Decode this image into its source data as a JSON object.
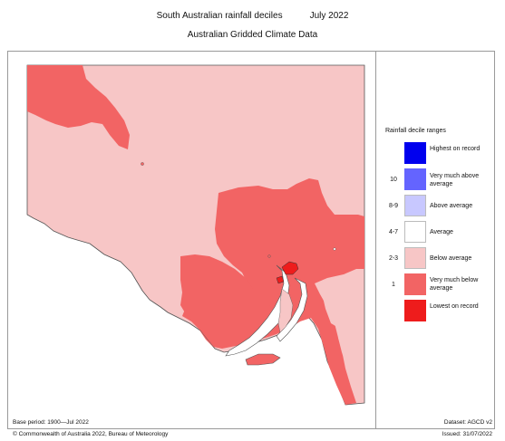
{
  "header": {
    "title": "South Australian rainfall deciles",
    "period": "July 2022",
    "subtitle": "Australian Gridded Climate Data"
  },
  "legend": {
    "title": "Rainfall decile ranges",
    "entries": [
      {
        "label": "Highest on record",
        "range": "",
        "color": "#0000ee"
      },
      {
        "label": "Very much above average",
        "range": "10",
        "color": "#6464ff"
      },
      {
        "label": "Above average",
        "range": "8-9",
        "color": "#c8c8ff"
      },
      {
        "label": "Average",
        "range": "4-7",
        "color": "#ffffff"
      },
      {
        "label": "Below average",
        "range": "2-3",
        "color": "#f7c6c6"
      },
      {
        "label": "Very much below average",
        "range": "1",
        "color": "#f26464"
      },
      {
        "label": "Lowest on record",
        "range": "",
        "color": "#ee1c1c"
      }
    ]
  },
  "map": {
    "region": "South Australia",
    "colors": {
      "below_average": "#f7c6c6",
      "very_much_below_average": "#f26464",
      "lowest_on_record": "#ee1c1c",
      "border": "#444444"
    }
  },
  "footer": {
    "base_period": "Base period: 1900—Jul 2022",
    "copyright": "© Commonwealth of Australia 2022, Bureau of Meteorology",
    "dataset": "Dataset: AGCD v2",
    "issued": "Issued: 31/07/2022"
  }
}
